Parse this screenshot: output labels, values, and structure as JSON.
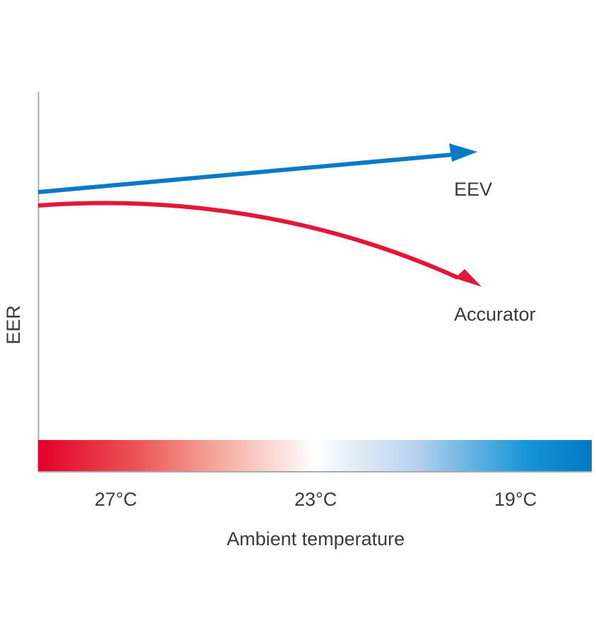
{
  "chart_data": {
    "type": "line",
    "title": "",
    "xlabel": "Ambient temperature",
    "ylabel": "EER",
    "x_ticks": [
      "27°C",
      "23°C",
      "19°C"
    ],
    "x_direction": "decreasing temperature left to right",
    "grid": false,
    "legend": "inline labels at line ends",
    "colors": {
      "eev": "#0a7ac2",
      "accurator": "#e2173a",
      "axis": "#aaaaaa",
      "gradient_hot": "#e3002b",
      "gradient_mid": "#ffffff",
      "gradient_cold": "#0078c2"
    },
    "series": [
      {
        "name": "EEV",
        "key": "eev",
        "trend": "rising"
      },
      {
        "name": "Accurator",
        "key": "accurator",
        "trend": "falling"
      }
    ]
  }
}
